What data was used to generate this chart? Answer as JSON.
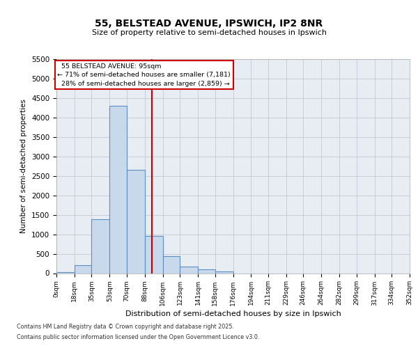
{
  "title1": "55, BELSTEAD AVENUE, IPSWICH, IP2 8NR",
  "title2": "Size of property relative to semi-detached houses in Ipswich",
  "xlabel": "Distribution of semi-detached houses by size in Ipswich",
  "ylabel": "Number of semi-detached properties",
  "property_address": "55 BELSTEAD AVENUE: 95sqm",
  "pct_smaller": "71% of semi-detached houses are smaller (7,181)",
  "pct_larger": "28% of semi-detached houses are larger (2,859)",
  "vline_x": 95,
  "bin_edges": [
    0,
    18,
    35,
    53,
    70,
    88,
    106,
    123,
    141,
    158,
    176,
    194,
    211,
    229,
    246,
    264,
    282,
    299,
    317,
    334,
    352
  ],
  "bin_labels": [
    "0sqm",
    "18sqm",
    "35sqm",
    "53sqm",
    "70sqm",
    "88sqm",
    "106sqm",
    "123sqm",
    "141sqm",
    "158sqm",
    "176sqm",
    "194sqm",
    "211sqm",
    "229sqm",
    "246sqm",
    "264sqm",
    "282sqm",
    "299sqm",
    "317sqm",
    "334sqm",
    "352sqm"
  ],
  "counts": [
    25,
    200,
    1380,
    4300,
    2650,
    950,
    430,
    170,
    100,
    50,
    0,
    0,
    0,
    0,
    0,
    0,
    0,
    0,
    0,
    0
  ],
  "bar_color": "#c9d9ec",
  "bar_edge_color": "#5b8fc2",
  "vline_color": "#cc0000",
  "annotation_box_edge": "#cc0000",
  "ylim_max": 5500,
  "yticks": [
    0,
    500,
    1000,
    1500,
    2000,
    2500,
    3000,
    3500,
    4000,
    4500,
    5000,
    5500
  ],
  "grid_color": "#c5cdd8",
  "bg_color": "#e8edf4",
  "footer1": "Contains HM Land Registry data © Crown copyright and database right 2025.",
  "footer2": "Contains public sector information licensed under the Open Government Licence v3.0."
}
